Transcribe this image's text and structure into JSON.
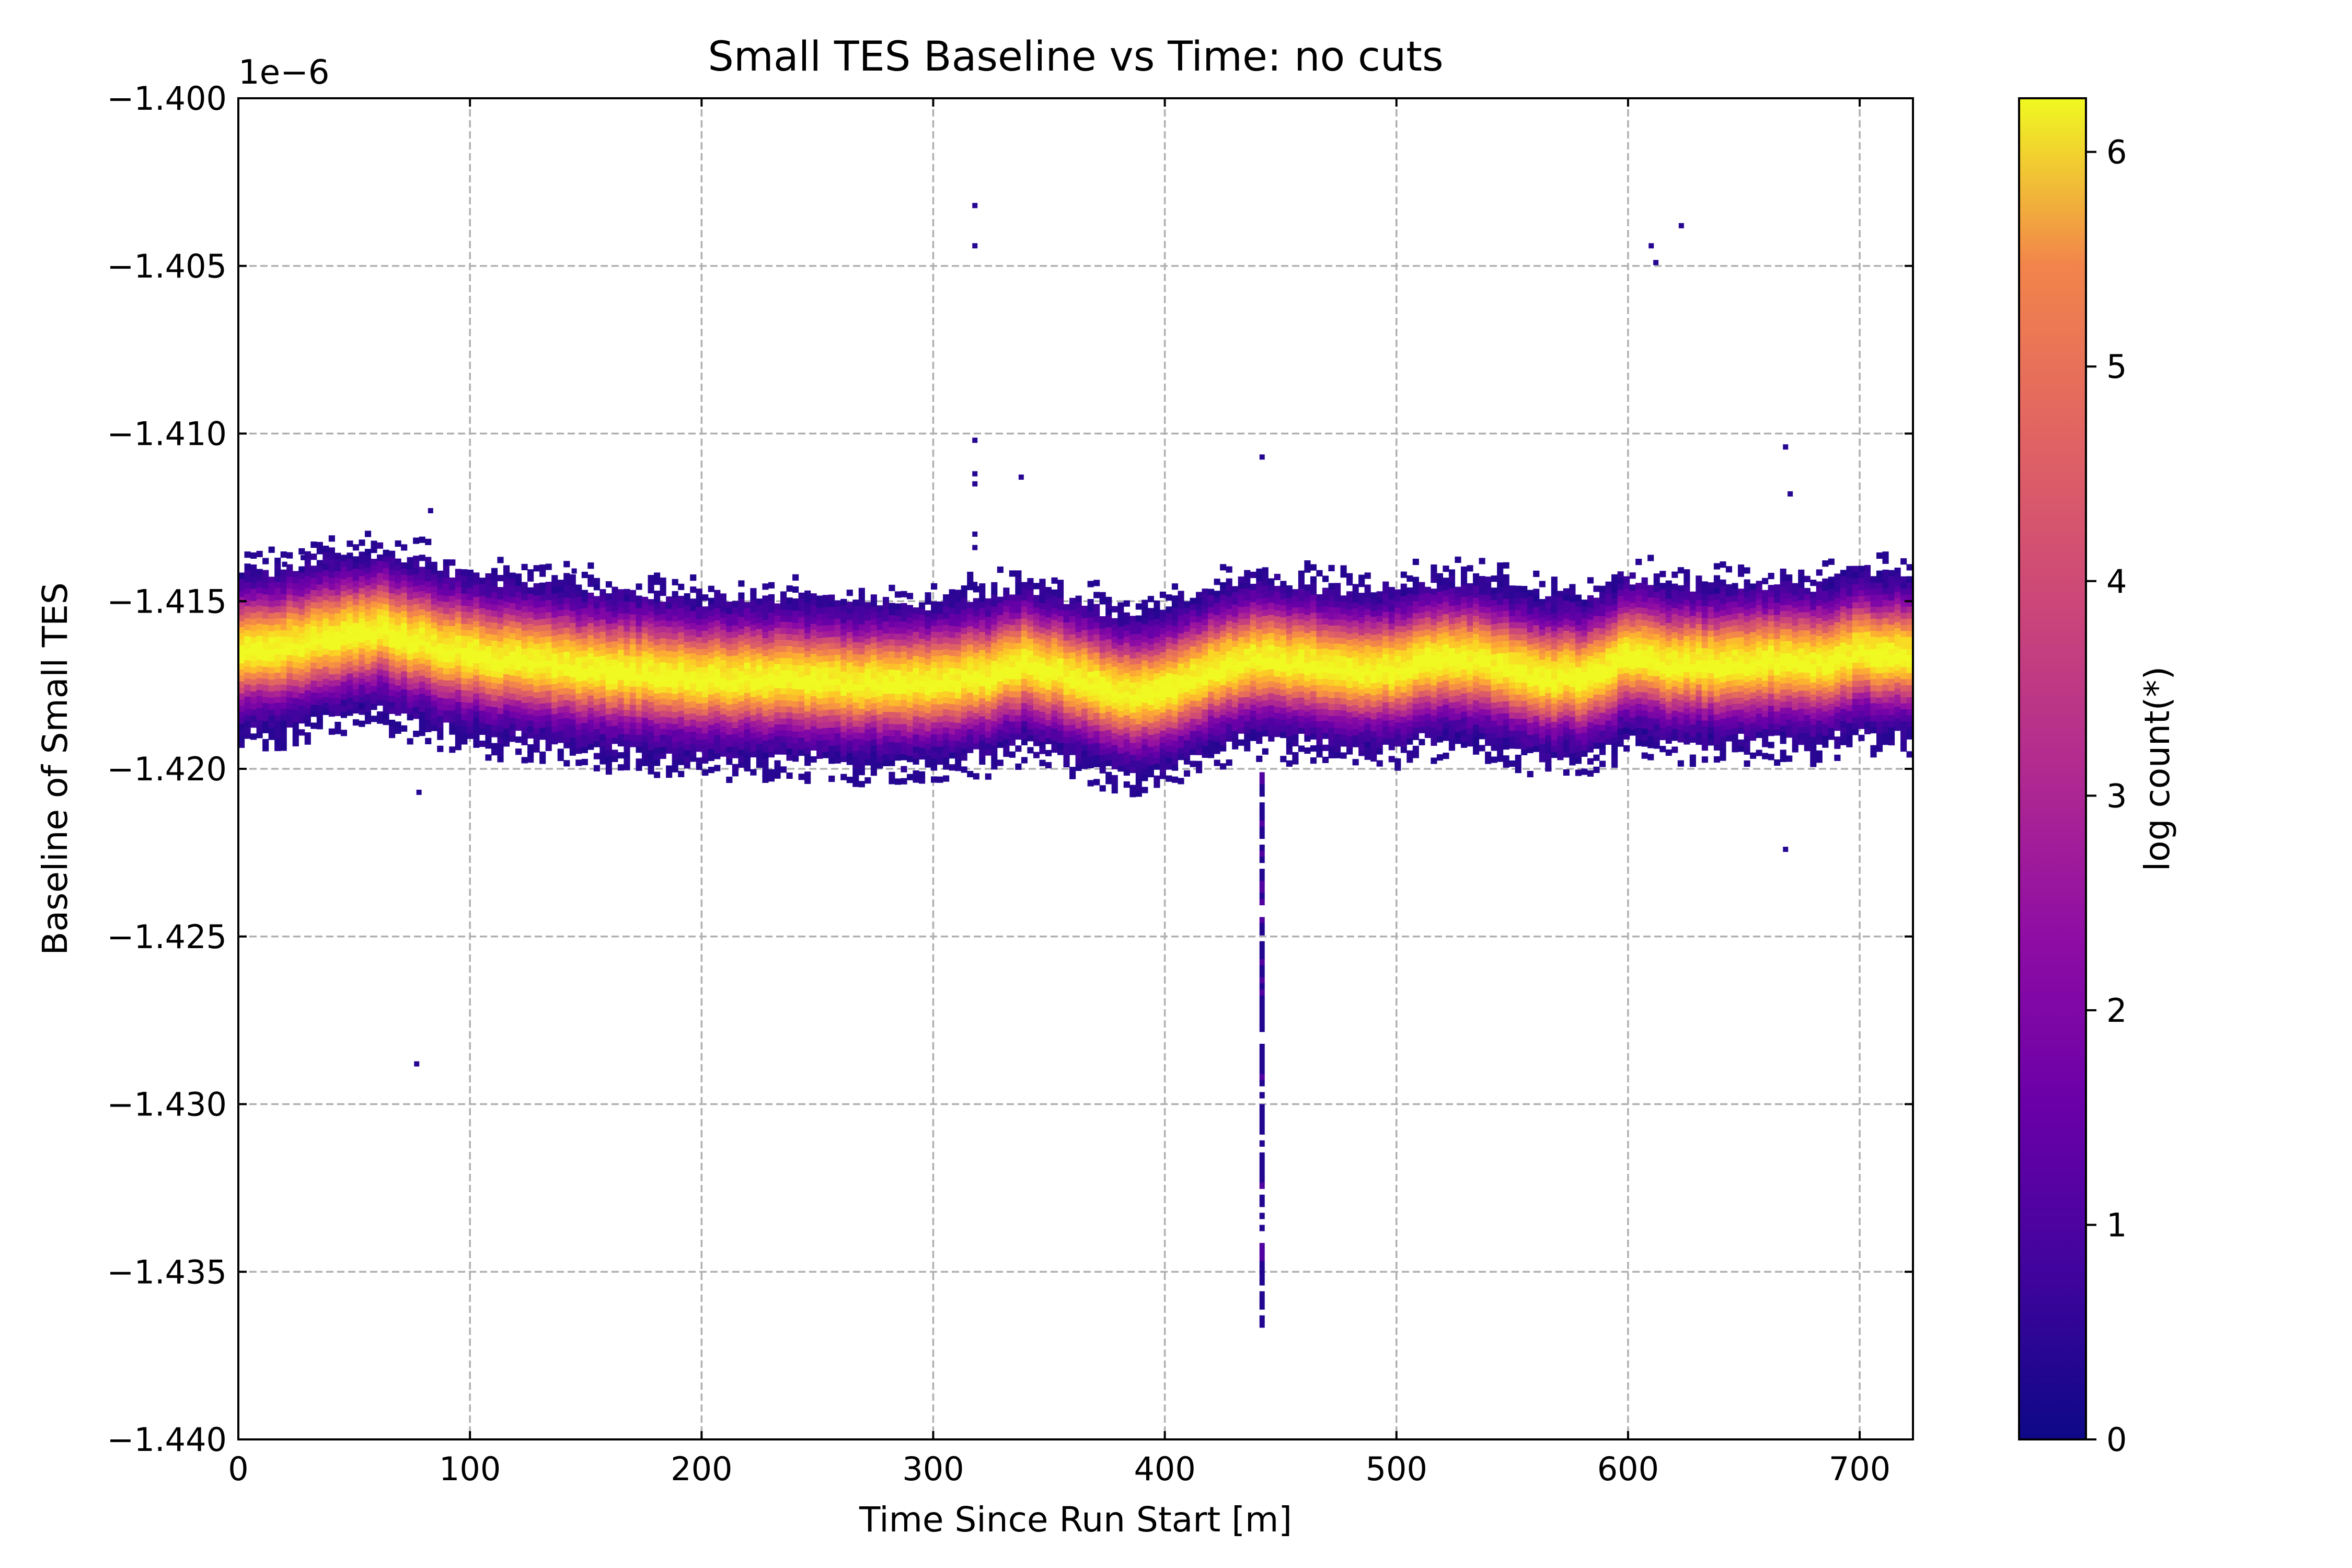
{
  "chart_data": {
    "type": "heatmap",
    "title": "Small TES Baseline vs Time: no cuts",
    "xlabel": "Time Since Run Start [m]",
    "ylabel": "Baseline of Small TES",
    "y_offset_label": "1e−6",
    "xlim": [
      0,
      723
    ],
    "ylim": [
      -1.44,
      -1.4
    ],
    "x_ticks": [
      0,
      100,
      200,
      300,
      400,
      500,
      600,
      700
    ],
    "x_tick_labels": [
      "0",
      "100",
      "200",
      "300",
      "400",
      "500",
      "600",
      "700"
    ],
    "y_ticks": [
      -1.44,
      -1.435,
      -1.43,
      -1.425,
      -1.42,
      -1.415,
      -1.41,
      -1.405,
      -1.4
    ],
    "y_tick_labels": [
      "−1.440",
      "−1.435",
      "−1.430",
      "−1.425",
      "−1.420",
      "−1.415",
      "−1.410",
      "−1.405",
      "−1.400"
    ],
    "grid": true,
    "colormap": "plasma",
    "colorbar": {
      "label": "log count(*)",
      "range": [
        0,
        6.25
      ],
      "ticks": [
        0,
        1,
        2,
        3,
        4,
        5,
        6
      ],
      "tick_labels": [
        "0",
        "1",
        "2",
        "3",
        "4",
        "5",
        "6"
      ]
    },
    "band_center": [
      [
        0,
        -1.4165
      ],
      [
        20,
        -1.4163
      ],
      [
        40,
        -1.416
      ],
      [
        60,
        -1.4158
      ],
      [
        80,
        -1.4162
      ],
      [
        100,
        -1.4165
      ],
      [
        130,
        -1.4168
      ],
      [
        160,
        -1.417
      ],
      [
        200,
        -1.4172
      ],
      [
        240,
        -1.4173
      ],
      [
        280,
        -1.4174
      ],
      [
        300,
        -1.4173
      ],
      [
        320,
        -1.4172
      ],
      [
        340,
        -1.4168
      ],
      [
        360,
        -1.4172
      ],
      [
        380,
        -1.4177
      ],
      [
        400,
        -1.4176
      ],
      [
        420,
        -1.417
      ],
      [
        440,
        -1.4166
      ],
      [
        460,
        -1.4168
      ],
      [
        480,
        -1.417
      ],
      [
        500,
        -1.417
      ],
      [
        520,
        -1.4166
      ],
      [
        540,
        -1.4168
      ],
      [
        560,
        -1.4172
      ],
      [
        580,
        -1.4172
      ],
      [
        600,
        -1.4166
      ],
      [
        620,
        -1.4168
      ],
      [
        640,
        -1.4168
      ],
      [
        660,
        -1.4167
      ],
      [
        680,
        -1.4168
      ],
      [
        700,
        -1.4165
      ],
      [
        723,
        -1.4165
      ]
    ],
    "outliers": [
      [
        318,
        -1.4032
      ],
      [
        318,
        -1.4044
      ],
      [
        318,
        -1.4102
      ],
      [
        318,
        -1.4112
      ],
      [
        318,
        -1.4115
      ],
      [
        318,
        -1.413
      ],
      [
        318,
        -1.4134
      ],
      [
        318,
        -1.4145
      ],
      [
        338,
        -1.4113
      ],
      [
        442,
        -1.4107
      ],
      [
        610,
        -1.4044
      ],
      [
        612,
        -1.4049
      ],
      [
        623,
        -1.4038
      ],
      [
        668,
        -1.4104
      ],
      [
        670,
        -1.4118
      ],
      [
        668,
        -1.4224
      ],
      [
        83,
        -1.4123
      ],
      [
        78,
        -1.4207
      ],
      [
        77,
        -1.4288
      ],
      [
        20,
        -1.4139
      ],
      [
        28,
        -1.4137
      ],
      [
        145,
        -1.4141
      ]
    ],
    "outlier_streak": {
      "x": 442,
      "y_range": [
        -1.4201,
        -1.4365
      ]
    }
  }
}
